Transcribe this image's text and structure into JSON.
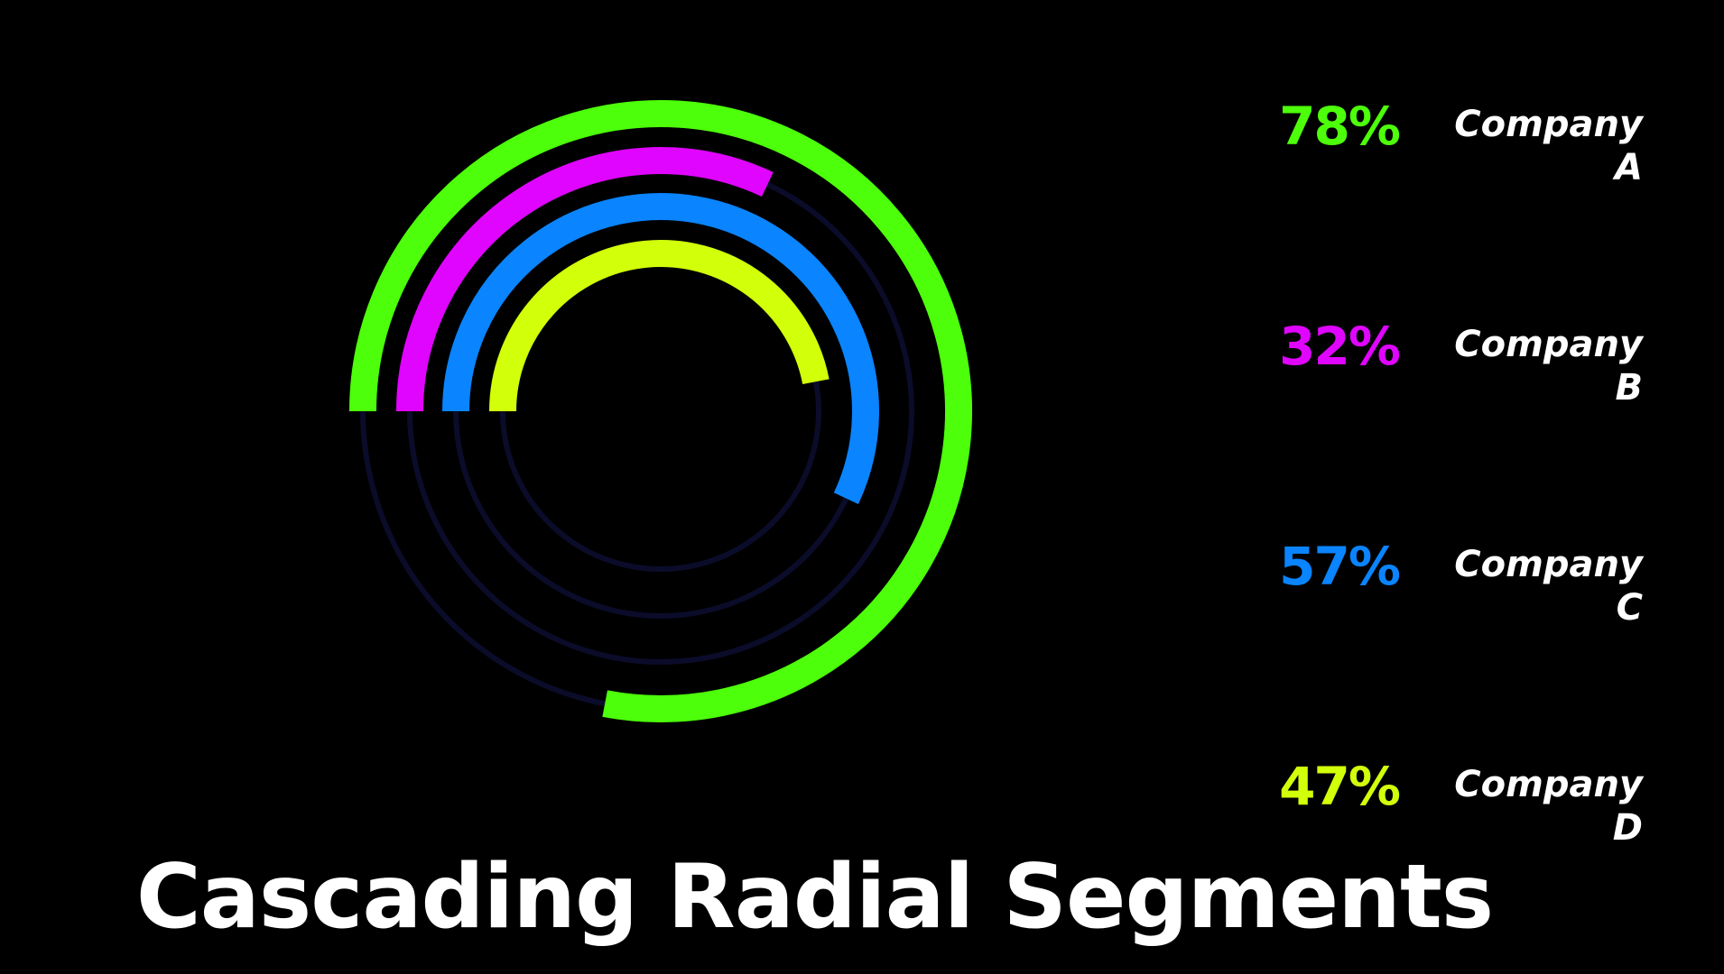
{
  "chart_data": {
    "type": "radial-bar",
    "title": "Cascading Radial Segments",
    "value_unit": "%",
    "value_max": 100,
    "start_angle": "9 o'clock",
    "direction": "clockwise",
    "background_color": "#000000",
    "track_color": "#0b0c2a",
    "series": [
      {
        "name": "Company A",
        "value": 78,
        "display": "78%",
        "color": "#4dff0a"
      },
      {
        "name": "Company B",
        "value": 32,
        "display": "32%",
        "color": "#e005ff"
      },
      {
        "name": "Company C",
        "value": 57,
        "display": "57%",
        "color": "#0a84ff"
      },
      {
        "name": "Company D",
        "value": 47,
        "display": "47%",
        "color": "#d2ff0a"
      }
    ]
  }
}
